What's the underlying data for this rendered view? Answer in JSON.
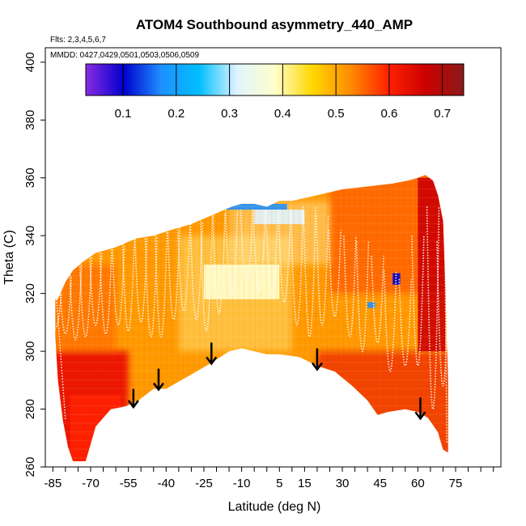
{
  "chart_data": {
    "type": "heatmap",
    "title": "ATOM4 Southbound asymmetry_440_AMP",
    "subtitle_flights": "Flts: 2,3,4,5,6,7",
    "subtitle_dates": "MMDD: 0427,0429,0501,0503,0506,0509",
    "xlabel": "Latitude (deg N)",
    "ylabel": "Theta (C)",
    "xlim": [
      -88,
      93
    ],
    "ylim": [
      260,
      405
    ],
    "x_ticks_minor": [
      -85,
      -80,
      -75,
      -70,
      -65,
      -60,
      -55,
      -50,
      -45,
      -40,
      -35,
      -30,
      -25,
      -20,
      -15,
      -10,
      -5,
      0,
      5,
      10,
      15,
      20,
      25,
      30,
      35,
      40,
      45,
      50,
      55,
      60,
      65,
      70,
      75,
      80,
      85,
      90
    ],
    "x_tick_labels": [
      "-85",
      "-70",
      "-55",
      "-40",
      "-25",
      "-10",
      "5",
      "15",
      "30",
      "45",
      "60",
      "75"
    ],
    "x_tick_label_values": [
      -85,
      -70,
      -55,
      -40,
      -25,
      -10,
      5,
      15,
      30,
      45,
      60,
      75
    ],
    "y_ticks": [
      260,
      280,
      300,
      320,
      340,
      360,
      380,
      400
    ],
    "y_tick_labels": [
      "260",
      "280",
      "300",
      "320",
      "340",
      "360",
      "380",
      "400"
    ],
    "colorbar": {
      "vmin": 0.03,
      "vmax": 0.74,
      "tick_values": [
        0.1,
        0.2,
        0.3,
        0.4,
        0.5,
        0.6,
        0.7
      ],
      "tick_labels": [
        "0.1",
        "0.2",
        "0.3",
        "0.4",
        "0.5",
        "0.6",
        "0.7"
      ],
      "colors": [
        "#8a2be2",
        "#0000cd",
        "#1e90ff",
        "#00bfff",
        "#e0f4ff",
        "#ffffcc",
        "#ffd700",
        "#ff8c00",
        "#ff2200",
        "#cc0000",
        "#8b1a1a"
      ]
    },
    "upper_boundary": [
      [
        -83,
        318
      ],
      [
        -80,
        324
      ],
      [
        -77,
        328
      ],
      [
        -73,
        331
      ],
      [
        -68,
        334
      ],
      [
        -60,
        336
      ],
      [
        -52,
        339
      ],
      [
        -45,
        340
      ],
      [
        -38,
        342
      ],
      [
        -30,
        344
      ],
      [
        -22,
        347
      ],
      [
        -14,
        350
      ],
      [
        -10,
        351
      ],
      [
        -5,
        351
      ],
      [
        0,
        350
      ],
      [
        5,
        352
      ],
      [
        10,
        352
      ],
      [
        15,
        353
      ],
      [
        20,
        354
      ],
      [
        25,
        355
      ],
      [
        30,
        356
      ],
      [
        40,
        357
      ],
      [
        50,
        358
      ],
      [
        56,
        359
      ],
      [
        60,
        360
      ],
      [
        63,
        361
      ],
      [
        66,
        359
      ],
      [
        68,
        354
      ],
      [
        70,
        345
      ],
      [
        71,
        320
      ],
      [
        72,
        290
      ]
    ],
    "lower_boundary": [
      [
        72,
        265
      ],
      [
        70,
        266
      ],
      [
        68,
        272
      ],
      [
        64,
        277
      ],
      [
        60,
        279
      ],
      [
        55,
        280
      ],
      [
        48,
        279
      ],
      [
        44,
        278
      ],
      [
        40,
        283
      ],
      [
        34,
        288
      ],
      [
        27,
        293
      ],
      [
        20,
        295
      ],
      [
        13,
        298
      ],
      [
        5,
        299
      ],
      [
        0,
        299
      ],
      [
        -5,
        300
      ],
      [
        -10,
        301
      ],
      [
        -15,
        300
      ],
      [
        -22,
        296
      ],
      [
        -30,
        292
      ],
      [
        -36,
        289
      ],
      [
        -40,
        287
      ],
      [
        -45,
        287
      ],
      [
        -51,
        283
      ],
      [
        -56,
        281
      ],
      [
        -62,
        280
      ],
      [
        -68,
        274
      ],
      [
        -72,
        262
      ],
      [
        -77,
        262
      ],
      [
        -79,
        267
      ],
      [
        -81,
        276
      ],
      [
        -83,
        290
      ],
      [
        -84,
        305
      ],
      [
        -84,
        318
      ]
    ],
    "features": [
      {
        "name": "blue-band-top",
        "x": [
          -18,
          8
        ],
        "y": [
          349,
          351
        ],
        "value": 0.15
      },
      {
        "name": "light-blue-patch",
        "x": [
          -5,
          15
        ],
        "y": [
          344,
          349
        ],
        "value": 0.3
      },
      {
        "name": "pale-patch-center",
        "x": [
          -25,
          5
        ],
        "y": [
          318,
          330
        ],
        "value": 0.42
      },
      {
        "name": "blue-spot-right",
        "x": [
          50,
          53
        ],
        "y": [
          323,
          327
        ],
        "value": 0.12
      },
      {
        "name": "blue-spot-mid",
        "x": [
          40,
          43
        ],
        "y": [
          315,
          317
        ],
        "value": 0.2
      },
      {
        "name": "red-south-base",
        "x": [
          -78,
          -58
        ],
        "y": [
          262,
          285
        ],
        "value": 0.63
      },
      {
        "name": "red-north-peak",
        "x": [
          60,
          71
        ],
        "y": [
          300,
          360
        ],
        "value": 0.68
      }
    ],
    "arrows": [
      {
        "x": -53,
        "y_top": 287,
        "y_tip": 281
      },
      {
        "x": -43,
        "y_top": 294,
        "y_tip": 287
      },
      {
        "x": -22,
        "y_top": 303,
        "y_tip": 296
      },
      {
        "x": 20,
        "y_top": 301,
        "y_tip": 294
      },
      {
        "x": 61,
        "y_top": 284,
        "y_tip": 277
      }
    ]
  }
}
